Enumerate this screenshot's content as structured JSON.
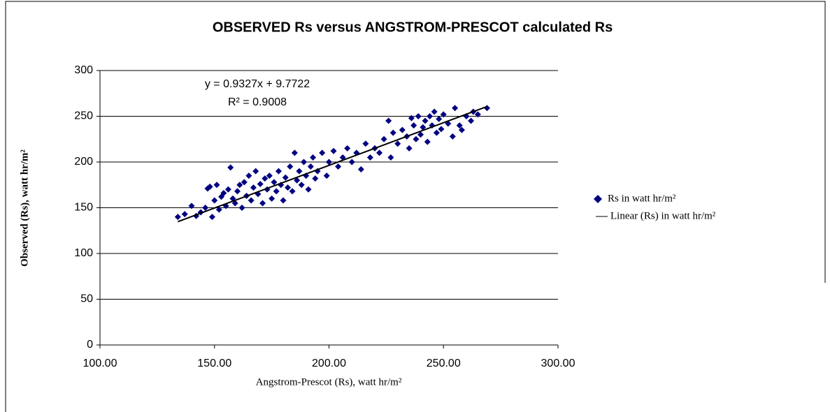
{
  "chart_data": {
    "type": "scatter",
    "title": "OBSERVED  Rs versus ANGSTROM-PRESCOT calculated Rs",
    "x_label": "Angstrom-Prescot (Rs), watt hr/m²",
    "y_label": "Observed (Rs), watt hr/m²",
    "annotations": [
      "y = 0.9327x + 9.7722",
      "R² = 0.9008"
    ],
    "xlim": [
      100,
      300
    ],
    "xticks": [
      {
        "value": 100,
        "label": "100.00"
      },
      {
        "value": 150,
        "label": "150.00"
      },
      {
        "value": 200,
        "label": "200.00"
      },
      {
        "value": 250,
        "label": "250.00"
      },
      {
        "value": 300,
        "label": "300.00"
      }
    ],
    "ylim": [
      0,
      300
    ],
    "yticks": [
      0,
      50,
      100,
      150,
      200,
      250,
      300
    ],
    "grid": true,
    "legend": "right",
    "series": [
      {
        "name": "Rs in watt hr/m²",
        "color": "#000080",
        "x": [
          134,
          137,
          140,
          142,
          144,
          146,
          147,
          148,
          149,
          150,
          151,
          152,
          153,
          154,
          155,
          156,
          157,
          158,
          159,
          160,
          161,
          162,
          163,
          164,
          165,
          166,
          167,
          168,
          169,
          170,
          171,
          172,
          173,
          174,
          175,
          176,
          177,
          178,
          179,
          180,
          181,
          182,
          183,
          184,
          185,
          186,
          187,
          188,
          189,
          190,
          191,
          192,
          193,
          194,
          195,
          197,
          199,
          200,
          202,
          204,
          206,
          208,
          210,
          212,
          214,
          216,
          218,
          220,
          222,
          224,
          226,
          227,
          228,
          230,
          232,
          234,
          235,
          236,
          237,
          238,
          239,
          240,
          241,
          242,
          243,
          244,
          245,
          246,
          247,
          248,
          249,
          250,
          252,
          254,
          255,
          257,
          258,
          260,
          262,
          263,
          265,
          269
        ],
        "values": [
          140,
          143,
          152,
          141,
          145,
          150,
          171,
          173,
          140,
          158,
          175,
          148,
          162,
          166,
          152,
          170,
          194,
          160,
          155,
          168,
          175,
          150,
          178,
          163,
          185,
          158,
          172,
          190,
          165,
          176,
          155,
          182,
          170,
          185,
          160,
          178,
          168,
          190,
          175,
          158,
          183,
          172,
          195,
          168,
          210,
          180,
          190,
          175,
          200,
          185,
          170,
          195,
          205,
          182,
          190,
          210,
          185,
          200,
          212,
          195,
          205,
          215,
          200,
          210,
          192,
          220,
          205,
          215,
          210,
          225,
          245,
          205,
          232,
          220,
          235,
          228,
          215,
          248,
          240,
          225,
          250,
          230,
          238,
          245,
          222,
          250,
          240,
          255,
          232,
          247,
          236,
          252,
          242,
          228,
          259,
          240,
          235,
          250,
          245,
          255,
          252,
          259
        ]
      }
    ],
    "trendline": {
      "name": "Linear (Rs) in watt hr/m²",
      "color": "#000000",
      "slope": 0.9327,
      "intercept": 9.7722,
      "x": [
        134,
        269
      ]
    }
  }
}
